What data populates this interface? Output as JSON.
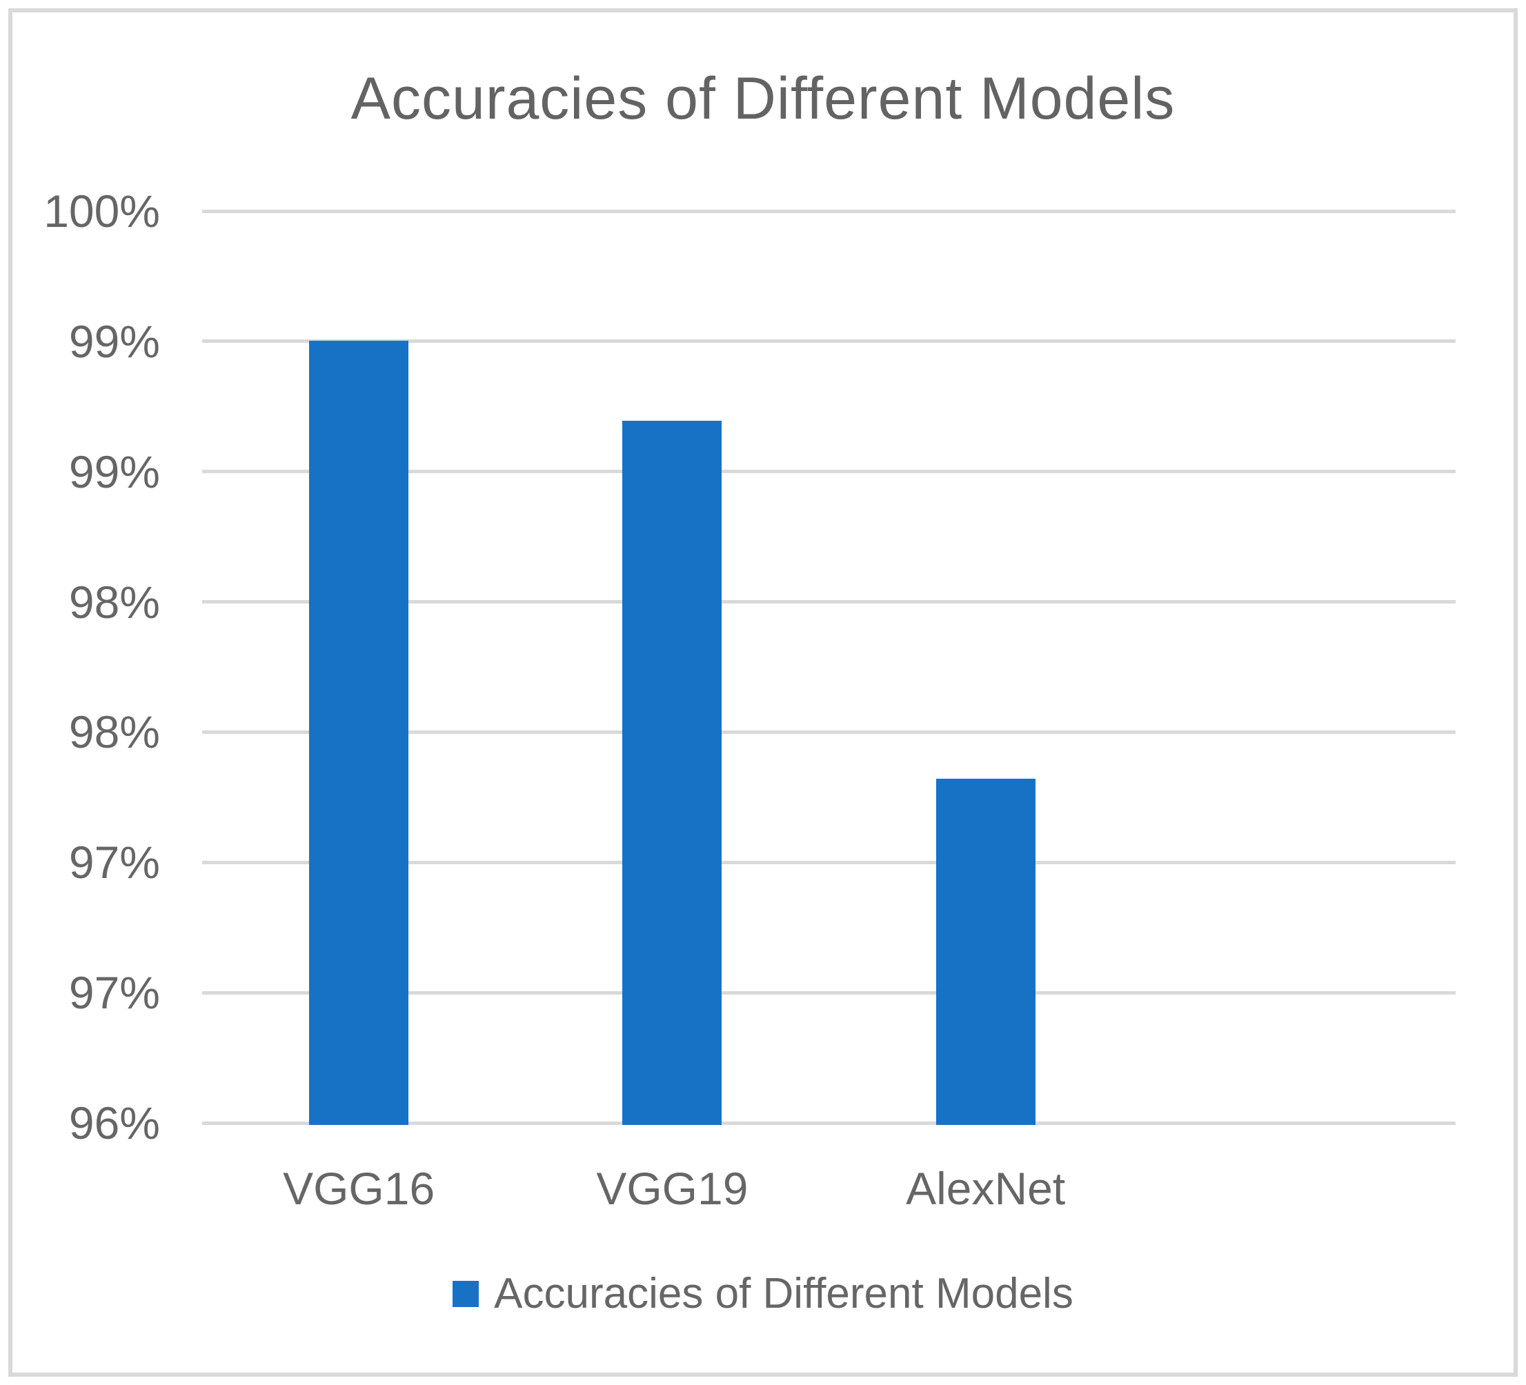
{
  "chart": {
    "title": "Accuracies of Different Models"
  },
  "legend": {
    "label": "Accuracies of Different Models",
    "swatch_color": "#1772c6"
  },
  "colors": {
    "bar": "#1772c6",
    "gridline": "#d9d9d9",
    "frame_border": "#d9d9d9",
    "text": "#666666",
    "title_text": "#636363",
    "background": "#ffffff"
  },
  "chart_data": {
    "type": "bar",
    "title": "Accuracies of Different Models",
    "categories": [
      "VGG16",
      "VGG19",
      "AlexNet"
    ],
    "series": [
      {
        "name": "Accuracies of Different Models",
        "values": [
          99.43,
          99.08,
          97.51
        ]
      }
    ],
    "value_unit": "%",
    "ylabel": "",
    "xlabel": "",
    "ylim": [
      96,
      100
    ],
    "y_tick_labels_top_to_bottom": [
      "100%",
      "99%",
      "99%",
      "98%",
      "98%",
      "97%",
      "97%",
      "96%"
    ],
    "grid": true,
    "gridlines": "horizontal",
    "legend_position": "bottom",
    "category_slots": 4,
    "bar_color": "#1772c6"
  }
}
